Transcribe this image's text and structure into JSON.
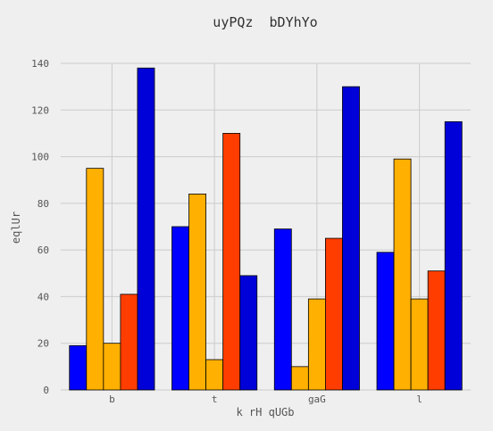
{
  "chart_data": {
    "type": "bar",
    "title": "uyPQz  bDYhYo",
    "xlabel": "k rH qUGb",
    "ylabel": "eqlUr",
    "categories": [
      "b",
      "t",
      "gaG",
      "l"
    ],
    "ylim": [
      0,
      140
    ],
    "yticks": [
      0,
      20,
      40,
      60,
      80,
      100,
      120,
      140
    ],
    "grid": true,
    "legend": "none",
    "series": [
      {
        "values": [
          19,
          70,
          69,
          59
        ],
        "color": "#0000ff"
      },
      {
        "values": [
          95,
          84,
          10,
          99
        ],
        "color": "#ffb000"
      },
      {
        "values": [
          20,
          13,
          39,
          39
        ],
        "color": "#ffb000"
      },
      {
        "values": [
          41,
          110,
          65,
          51
        ],
        "color": "#ff3d00"
      },
      {
        "values": [
          138,
          49,
          130,
          115
        ],
        "color": "#0000d8"
      }
    ]
  }
}
